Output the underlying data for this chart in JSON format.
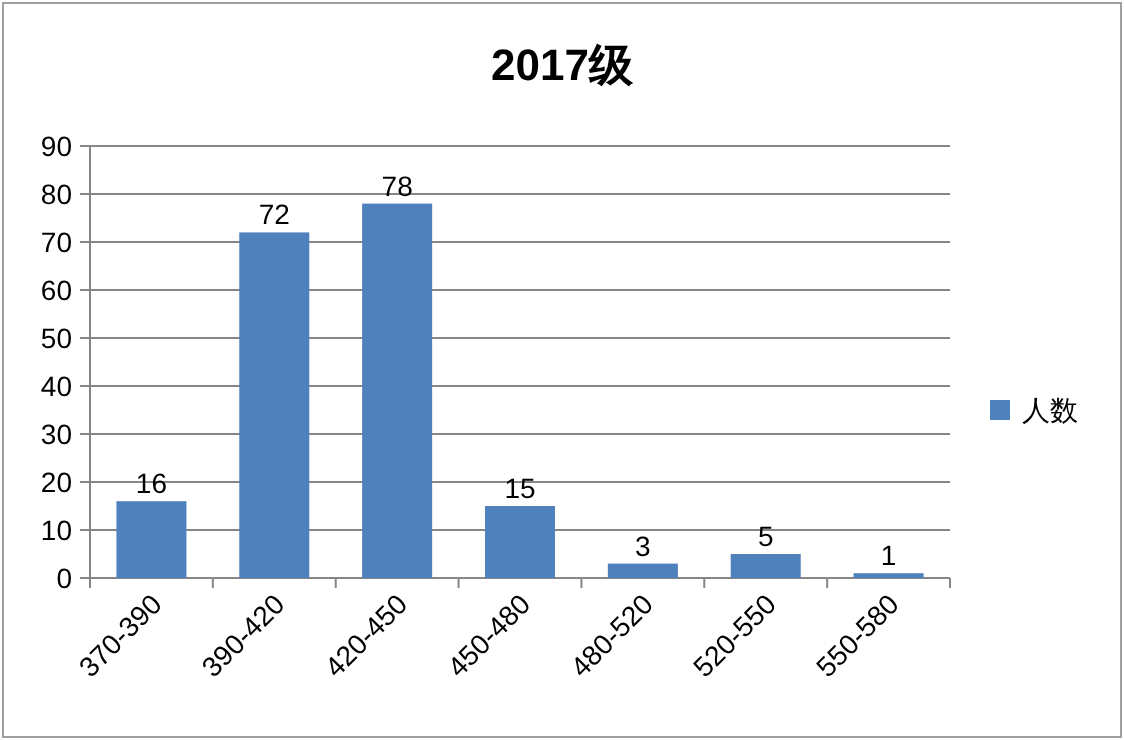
{
  "chart_data": {
    "type": "bar",
    "title": "2017级",
    "categories": [
      "370-390",
      "390-420",
      "420-450",
      "450-480",
      "480-520",
      "520-550",
      "550-580"
    ],
    "series": [
      {
        "name": "人数",
        "color": "#4f81bd",
        "values": [
          16,
          72,
          78,
          15,
          3,
          5,
          1
        ]
      }
    ],
    "ylim": [
      0,
      90
    ],
    "yticks": [
      0,
      10,
      20,
      30,
      40,
      50,
      60,
      70,
      80,
      90
    ],
    "grid": "y",
    "legend": "right",
    "data_labels": true
  }
}
